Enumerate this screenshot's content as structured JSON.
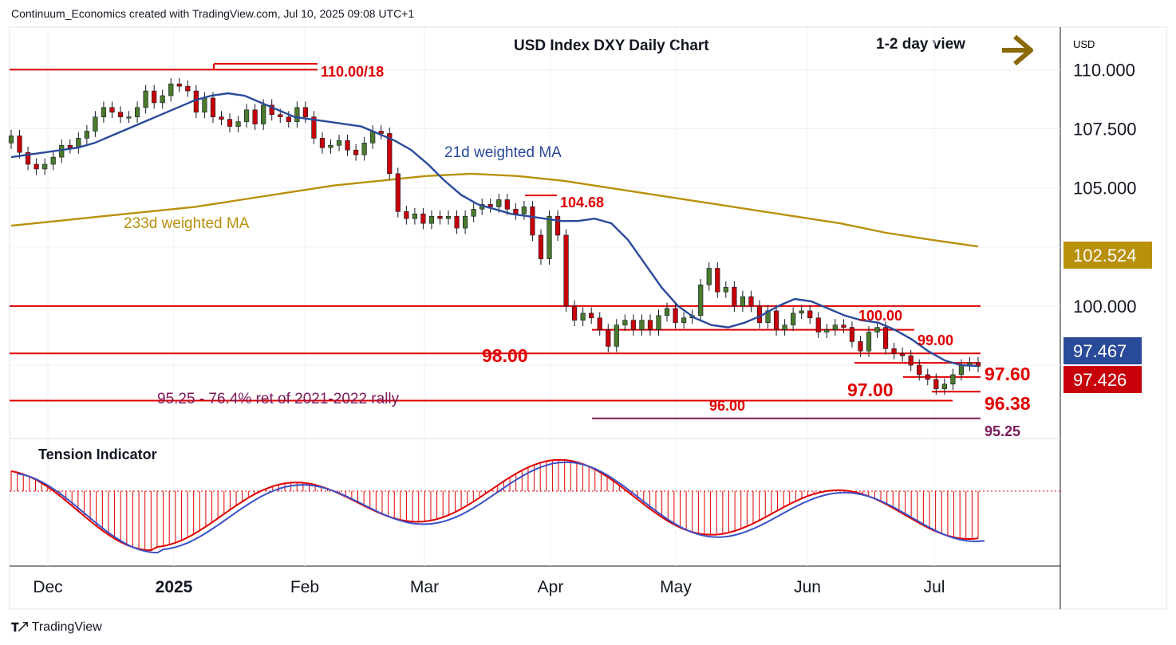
{
  "header": {
    "created": "Continuum_Economics created with TradingView.com, Jul 10, 2025 09:08 UTC+1"
  },
  "title": "USD Index DXY Daily Chart",
  "view": {
    "label": "1-2 day view",
    "arrow": "right-arrow-icon"
  },
  "footer": {
    "brand": "TradingView",
    "logo": "tradingview-logo-icon"
  },
  "colors": {
    "up": "#4a7a2c",
    "down": "#c8000a",
    "ma21": "#2a4a9a",
    "ma233": "#b8900a",
    "level": "#e00000",
    "retrace": "#7a1a5a",
    "arrow": "#8a6a0a"
  },
  "chart_data": {
    "type": "candlestick",
    "title": "USD Index DXY Daily Chart",
    "y_unit": "USD",
    "yticks": [
      "110.000",
      "107.500",
      "105.000",
      "100.000"
    ],
    "ytick_values": [
      110,
      107.5,
      105,
      100
    ],
    "ylim": [
      94.4,
      111.8
    ],
    "xticks": [
      "Dec",
      "2025",
      "Feb",
      "Mar",
      "Apr",
      "May",
      "Jun",
      "Jul"
    ],
    "grid": true,
    "price_badges": [
      {
        "text": "102.524",
        "series": "233d weighted MA"
      },
      {
        "text": "97.467",
        "series": "21d weighted MA"
      },
      {
        "text": "97.426",
        "series": "last price"
      }
    ],
    "series_labels": {
      "ma21": "21d weighted MA",
      "ma233": "233d weighted MA"
    },
    "levels": [
      {
        "value": 110.0,
        "label": "110.00/18",
        "style": "resistance"
      },
      {
        "value": 104.68,
        "label": "104.68",
        "style": "resistance"
      },
      {
        "value": 100.0,
        "label": "100.00",
        "style": "resistance"
      },
      {
        "value": 99.0,
        "label": "99.00",
        "style": "resistance"
      },
      {
        "value": 98.0,
        "label": "98.00",
        "style": "support"
      },
      {
        "value": 97.6,
        "label": "97.60",
        "style": "resistance"
      },
      {
        "value": 97.0,
        "label": "97.00",
        "style": "support"
      },
      {
        "value": 96.38,
        "label": "96.38",
        "style": "support"
      },
      {
        "value": 96.0,
        "label": "96.00",
        "style": "support"
      },
      {
        "value": 95.25,
        "label": "95.25",
        "style": "retracement"
      }
    ],
    "annotation": "95.25 - 76.4% ret of 2021-2022 rally",
    "ohlc_close": [
      107.2,
      106.5,
      106.0,
      105.8,
      106.0,
      106.3,
      106.8,
      106.7,
      107.1,
      107.4,
      108.0,
      108.4,
      108.2,
      108.0,
      108.0,
      108.4,
      109.1,
      108.6,
      108.9,
      109.4,
      109.3,
      109.1,
      108.2,
      108.8,
      108.0,
      107.9,
      107.6,
      107.8,
      108.3,
      107.7,
      108.5,
      108.1,
      108.0,
      107.8,
      108.4,
      108.0,
      107.1,
      106.7,
      106.8,
      107.0,
      106.6,
      106.4,
      106.9,
      107.4,
      107.3,
      105.6,
      104.0,
      103.7,
      103.9,
      103.5,
      103.8,
      103.7,
      103.8,
      103.3,
      103.8,
      104.1,
      104.3,
      104.2,
      104.5,
      104.1,
      103.9,
      104.2,
      103.0,
      102.0,
      103.8,
      103.0,
      100.0,
      99.4,
      99.7,
      99.5,
      99.0,
      98.3,
      99.2,
      99.4,
      99.0,
      99.4,
      99.0,
      99.6,
      99.9,
      99.3,
      99.5,
      99.6,
      100.9,
      101.6,
      100.6,
      100.8,
      100.0,
      100.4,
      100.0,
      99.3,
      99.8,
      99.0,
      99.2,
      99.7,
      99.8,
      99.5,
      98.9,
      99.0,
      99.2,
      99.1,
      98.5,
      98.1,
      98.9,
      99.1,
      98.2,
      98.0,
      97.9,
      97.5,
      97.1,
      96.9,
      96.5,
      96.7,
      97.1,
      97.5,
      97.6,
      97.45
    ],
    "ma21": [
      106.3,
      106.4,
      106.5,
      106.6,
      106.7,
      106.9,
      107.2,
      107.5,
      107.8,
      108.1,
      108.4,
      108.7,
      108.9,
      109.0,
      108.9,
      108.6,
      108.3,
      108.0,
      107.9,
      107.8,
      107.7,
      107.6,
      107.3,
      107.0,
      106.6,
      106.0,
      105.3,
      104.7,
      104.3,
      104.1,
      103.9,
      103.8,
      103.7,
      103.6,
      103.6,
      103.7,
      103.5,
      102.8,
      101.8,
      100.8,
      100.0,
      99.5,
      99.2,
      99.1,
      99.3,
      99.6,
      100.0,
      100.3,
      100.2,
      99.9,
      99.6,
      99.4,
      99.3,
      99.0,
      98.6,
      98.1,
      97.7,
      97.5,
      97.47
    ],
    "ma233": [
      103.4,
      103.6,
      103.8,
      104.0,
      104.2,
      104.5,
      104.8,
      105.1,
      105.3,
      105.5,
      105.6,
      105.5,
      105.3,
      105.0,
      104.7,
      104.4,
      104.1,
      103.8,
      103.5,
      103.1,
      102.8,
      102.52
    ]
  },
  "indicator": {
    "title": "Tension Indicator"
  }
}
